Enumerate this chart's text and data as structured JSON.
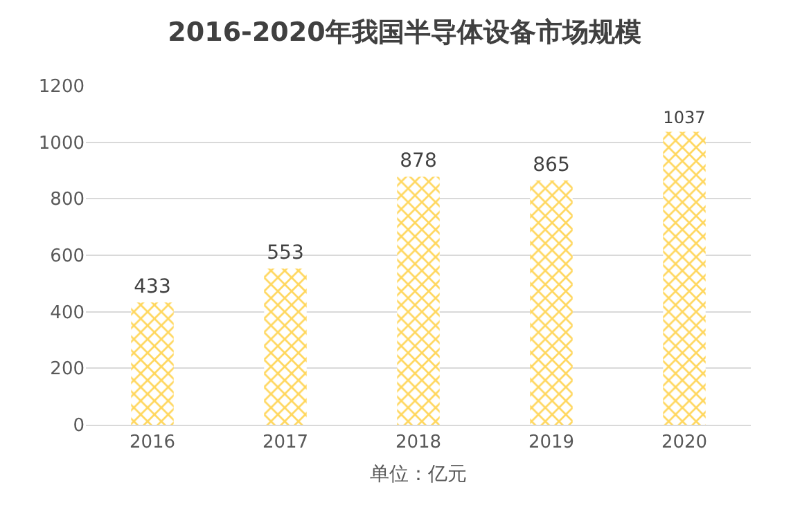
{
  "chart_data": {
    "type": "bar",
    "title": "2016-2020年我国半导体设备市场规模",
    "xlabel": "单位：亿元",
    "categories": [
      "2016",
      "2017",
      "2018",
      "2019",
      "2020"
    ],
    "values": [
      433,
      553,
      878,
      865,
      1037
    ],
    "color": "#ffd75e",
    "ylim": [
      0,
      1200
    ],
    "yticks": [
      0,
      200,
      400,
      600,
      800,
      1000,
      1200
    ],
    "grid": "y",
    "data_labels": true,
    "legend": false
  }
}
